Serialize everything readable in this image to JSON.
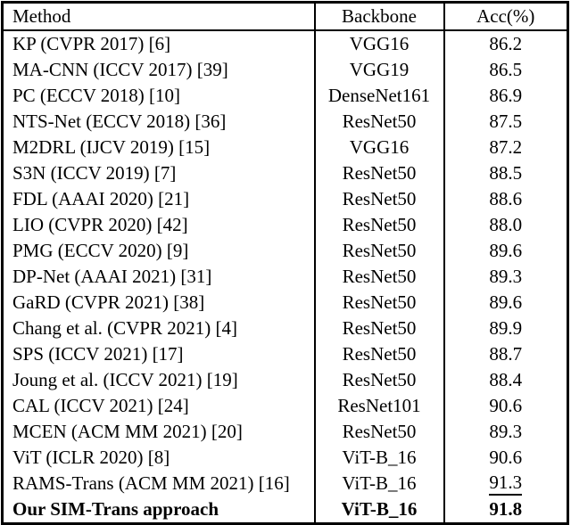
{
  "table": {
    "title_semantic": "fine-grained-recognition-accuracy-comparison",
    "columns": [
      "Method",
      "Backbone",
      "Acc(%)"
    ],
    "rows": [
      {
        "method": "KP (CVPR 2017) [6]",
        "backbone": "VGG16",
        "acc": "86.2"
      },
      {
        "method": "MA-CNN (ICCV 2017) [39]",
        "backbone": "VGG19",
        "acc": "86.5"
      },
      {
        "method": "PC (ECCV 2018) [10]",
        "backbone": "DenseNet161",
        "acc": "86.9"
      },
      {
        "method": "NTS-Net (ECCV 2018) [36]",
        "backbone": "ResNet50",
        "acc": "87.5"
      },
      {
        "method": "M2DRL (IJCV 2019) [15]",
        "backbone": "VGG16",
        "acc": "87.2"
      },
      {
        "method": "S3N (ICCV 2019) [7]",
        "backbone": "ResNet50",
        "acc": "88.5"
      },
      {
        "method": "FDL (AAAI 2020) [21]",
        "backbone": "ResNet50",
        "acc": "88.6"
      },
      {
        "method": "LIO (CVPR 2020) [42]",
        "backbone": "ResNet50",
        "acc": "88.0"
      },
      {
        "method": "PMG (ECCV 2020) [9]",
        "backbone": "ResNet50",
        "acc": "89.6"
      },
      {
        "method": "DP-Net (AAAI 2021) [31]",
        "backbone": "ResNet50",
        "acc": "89.3"
      },
      {
        "method": "GaRD (CVPR 2021) [38]",
        "backbone": "ResNet50",
        "acc": "89.6"
      },
      {
        "method": "Chang et al. (CVPR 2021) [4]",
        "backbone": "ResNet50",
        "acc": "89.9"
      },
      {
        "method": "SPS (ICCV 2021) [17]",
        "backbone": "ResNet50",
        "acc": "88.7"
      },
      {
        "method": "Joung et al. (ICCV 2021) [19]",
        "backbone": "ResNet50",
        "acc": "88.4"
      },
      {
        "method": "CAL (ICCV 2021) [24]",
        "backbone": "ResNet101",
        "acc": "90.6"
      },
      {
        "method": "MCEN (ACM MM 2021) [20]",
        "backbone": "ResNet50",
        "acc": "89.3"
      },
      {
        "method": "ViT (ICLR 2020) [8]",
        "backbone": "ViT-B_16",
        "acc": "90.6"
      },
      {
        "method": "RAMS-Trans (ACM MM 2021) [16]",
        "backbone": "ViT-B_16",
        "acc": "91.3",
        "acc_underlined": true
      },
      {
        "method": "Our SIM-Trans approach",
        "backbone": "ViT-B_16",
        "acc": "91.8",
        "bold": true
      }
    ],
    "colors": {
      "text": "#000000",
      "border": "#000000",
      "background": "#ffffff"
    }
  }
}
